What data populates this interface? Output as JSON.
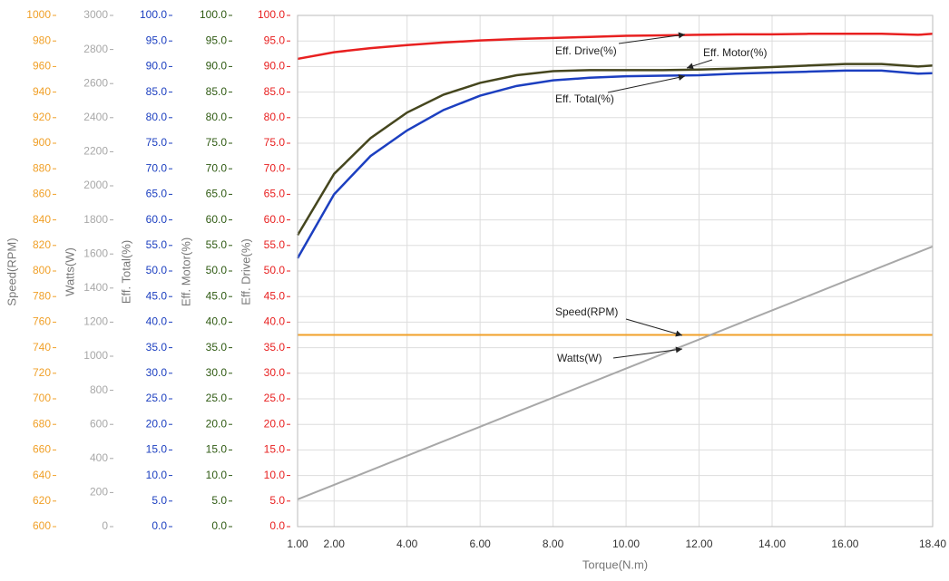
{
  "chart_data": {
    "type": "line",
    "x_label": "Torque(N.m)",
    "x": [
      1,
      2,
      3,
      4,
      5,
      6,
      7,
      8,
      9,
      10,
      11,
      12,
      13,
      14,
      15,
      16,
      17,
      18,
      18.4
    ],
    "xlim": [
      1,
      18.4
    ],
    "xticks": [
      {
        "value": 1,
        "label": "1.00"
      },
      {
        "value": 2,
        "label": "2.00"
      },
      {
        "value": 4,
        "label": "4.00"
      },
      {
        "value": 6,
        "label": "6.00"
      },
      {
        "value": 8,
        "label": "8.00"
      },
      {
        "value": 10,
        "label": "10.00"
      },
      {
        "value": 12,
        "label": "12.00"
      },
      {
        "value": 14,
        "label": "14.00"
      },
      {
        "value": 16,
        "label": "16.00"
      },
      {
        "value": 18.4,
        "label": "18.40"
      }
    ],
    "grid": true,
    "series": [
      {
        "name": "Speed(RPM)",
        "color": "#f0a028",
        "ylim": [
          600,
          1000
        ],
        "yticks": [
          600,
          620,
          640,
          660,
          680,
          700,
          720,
          740,
          760,
          780,
          800,
          820,
          840,
          860,
          880,
          900,
          920,
          940,
          960,
          980,
          1000
        ],
        "values": [
          750,
          750,
          750,
          750,
          750,
          750,
          750,
          750,
          750,
          750,
          750,
          750,
          750,
          750,
          750,
          750,
          750,
          750,
          750
        ]
      },
      {
        "name": "Watts(W)",
        "color": "#a8a8a8",
        "ylim": [
          0,
          3000
        ],
        "yticks": [
          0,
          200,
          400,
          600,
          800,
          1000,
          1200,
          1400,
          1600,
          1800,
          2000,
          2200,
          2400,
          2600,
          2800,
          3000
        ],
        "values": [
          160,
          245,
          330,
          416,
          501,
          586,
          672,
          757,
          842,
          928,
          1013,
          1098,
          1184,
          1269,
          1354,
          1440,
          1525,
          1610,
          1644
        ]
      },
      {
        "name": "Eff. Total(%)",
        "color": "#1c3fc0",
        "ylim": [
          0,
          100
        ],
        "yticks": [
          {
            "value": 0,
            "label": "0.0"
          },
          {
            "value": 5,
            "label": "5.0"
          },
          {
            "value": 10,
            "label": "10.0"
          },
          {
            "value": 15,
            "label": "15.0"
          },
          {
            "value": 20,
            "label": "20.0"
          },
          {
            "value": 25,
            "label": "25.0"
          },
          {
            "value": 30,
            "label": "30.0"
          },
          {
            "value": 35,
            "label": "35.0"
          },
          {
            "value": 40,
            "label": "40.0"
          },
          {
            "value": 45,
            "label": "45.0"
          },
          {
            "value": 50,
            "label": "50.0"
          },
          {
            "value": 55,
            "label": "55.0"
          },
          {
            "value": 60,
            "label": "60.0"
          },
          {
            "value": 65,
            "label": "65.0"
          },
          {
            "value": 70,
            "label": "70.0"
          },
          {
            "value": 75,
            "label": "75.0"
          },
          {
            "value": 80,
            "label": "80.0"
          },
          {
            "value": 85,
            "label": "85.0"
          },
          {
            "value": 90,
            "label": "90.0"
          },
          {
            "value": 95,
            "label": "95.0"
          },
          {
            "value": 100,
            "label": "100.0"
          }
        ],
        "values": [
          52.5,
          65,
          72.5,
          77.5,
          81.5,
          84.3,
          86.2,
          87.3,
          87.8,
          88.1,
          88.2,
          88.3,
          88.6,
          88.8,
          89,
          89.2,
          89.2,
          88.6,
          88.7
        ]
      },
      {
        "name": "Eff. Motor(%)",
        "color": "#2f5a12",
        "line_color": "#45461e",
        "ylim": [
          0,
          100
        ],
        "yticks": [
          {
            "value": 0,
            "label": "0.0"
          },
          {
            "value": 5,
            "label": "5.0"
          },
          {
            "value": 10,
            "label": "10.0"
          },
          {
            "value": 15,
            "label": "15.0"
          },
          {
            "value": 20,
            "label": "20.0"
          },
          {
            "value": 25,
            "label": "25.0"
          },
          {
            "value": 30,
            "label": "30.0"
          },
          {
            "value": 35,
            "label": "35.0"
          },
          {
            "value": 40,
            "label": "40.0"
          },
          {
            "value": 45,
            "label": "45.0"
          },
          {
            "value": 50,
            "label": "50.0"
          },
          {
            "value": 55,
            "label": "55.0"
          },
          {
            "value": 60,
            "label": "60.0"
          },
          {
            "value": 65,
            "label": "65.0"
          },
          {
            "value": 70,
            "label": "70.0"
          },
          {
            "value": 75,
            "label": "75.0"
          },
          {
            "value": 80,
            "label": "80.0"
          },
          {
            "value": 85,
            "label": "85.0"
          },
          {
            "value": 90,
            "label": "90.0"
          },
          {
            "value": 95,
            "label": "95.0"
          },
          {
            "value": 100,
            "label": "100.0"
          }
        ],
        "values": [
          57,
          69,
          76,
          81,
          84.5,
          86.8,
          88.3,
          89.1,
          89.3,
          89.3,
          89.3,
          89.4,
          89.6,
          89.9,
          90.2,
          90.5,
          90.5,
          90,
          90.2
        ]
      },
      {
        "name": "Eff. Drive(%)",
        "color": "#e82020",
        "ylim": [
          0,
          100
        ],
        "yticks": [
          {
            "value": 0,
            "label": "0.0"
          },
          {
            "value": 5,
            "label": "5.0"
          },
          {
            "value": 10,
            "label": "10.0"
          },
          {
            "value": 15,
            "label": "15.0"
          },
          {
            "value": 20,
            "label": "20.0"
          },
          {
            "value": 25,
            "label": "25.0"
          },
          {
            "value": 30,
            "label": "30.0"
          },
          {
            "value": 35,
            "label": "35.0"
          },
          {
            "value": 40,
            "label": "40.0"
          },
          {
            "value": 45,
            "label": "45.0"
          },
          {
            "value": 50,
            "label": "50.0"
          },
          {
            "value": 55,
            "label": "55.0"
          },
          {
            "value": 60,
            "label": "60.0"
          },
          {
            "value": 65,
            "label": "65.0"
          },
          {
            "value": 70,
            "label": "70.0"
          },
          {
            "value": 75,
            "label": "75.0"
          },
          {
            "value": 80,
            "label": "80.0"
          },
          {
            "value": 85,
            "label": "85.0"
          },
          {
            "value": 90,
            "label": "90.0"
          },
          {
            "value": 95,
            "label": "95.0"
          },
          {
            "value": 100,
            "label": "100.0"
          }
        ],
        "values": [
          91.5,
          92.8,
          93.6,
          94.2,
          94.7,
          95.1,
          95.4,
          95.6,
          95.8,
          96,
          96.1,
          96.2,
          96.3,
          96.3,
          96.4,
          96.4,
          96.4,
          96.2,
          96.4
        ]
      }
    ]
  }
}
